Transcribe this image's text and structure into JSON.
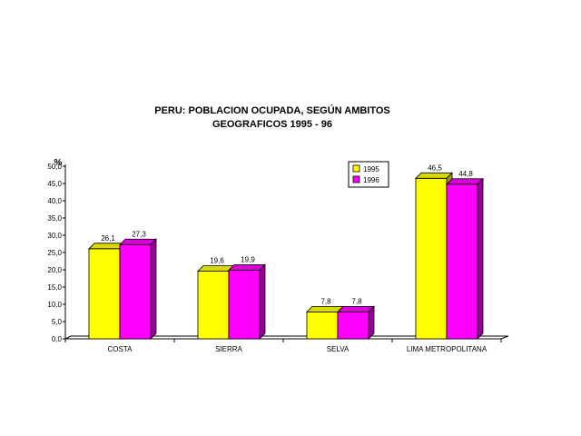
{
  "chart_data": {
    "type": "bar",
    "title_line1": "PERU: POBLACION OCUPADA, SEGÚN  AMBITOS",
    "title_line2": "GEOGRAFICOS  1995 - 96",
    "ylabel": "%",
    "xlabel": "",
    "ylim": [
      0,
      50
    ],
    "ytick_step": 5,
    "ytick_labels": [
      "0,0",
      "5,0",
      "10,0",
      "15,0",
      "20,0",
      "25,0",
      "30,0",
      "35,0",
      "40,0",
      "45,0",
      "50,0"
    ],
    "categories": [
      "COSTA",
      "SIERRA",
      "SELVA",
      "LIMA METROPOLITANA"
    ],
    "series": [
      {
        "name": "1995",
        "color": "#ffff00",
        "values": [
          26.1,
          19.6,
          7.8,
          46.5
        ],
        "labels": [
          "26,1",
          "19,6",
          "7,8",
          "46,5"
        ]
      },
      {
        "name": "1996",
        "color": "#ff00ff",
        "values": [
          27.3,
          19.9,
          7.8,
          44.8
        ],
        "labels": [
          "27,3",
          "19,9",
          "7,8",
          "44,8"
        ]
      }
    ],
    "legend_position": "top-right",
    "grid": false,
    "style": "3d-bar"
  }
}
